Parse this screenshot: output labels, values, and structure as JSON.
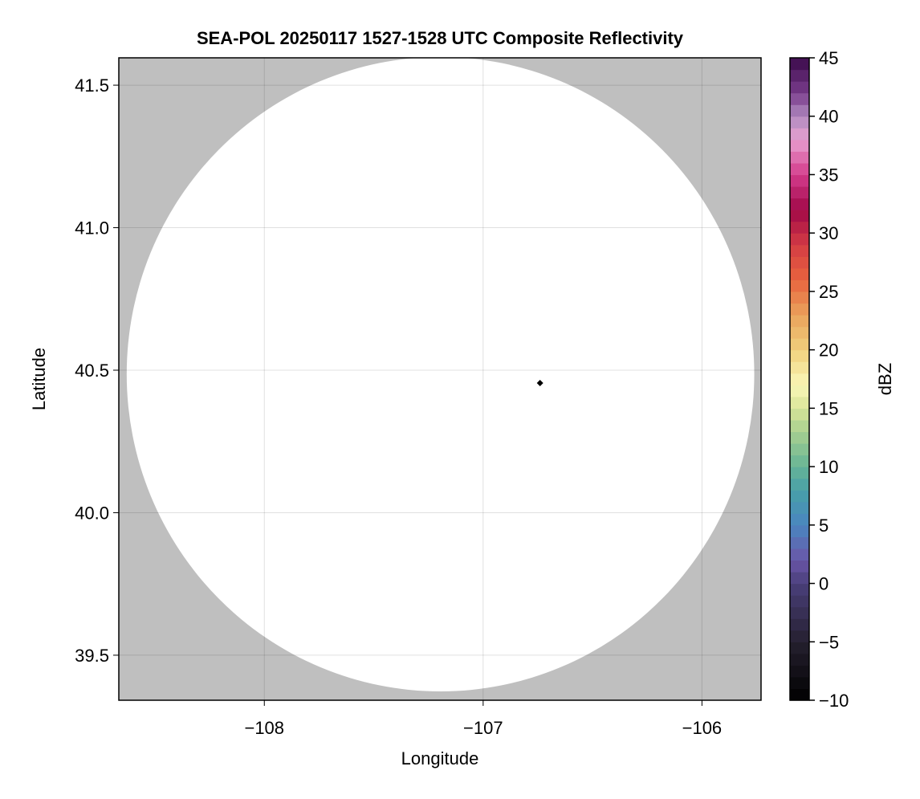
{
  "chart_data": {
    "type": "heatmap",
    "title": "SEA-POL 20250117 1527-1528 UTC Composite Reflectivity",
    "xlabel": "Longitude",
    "ylabel": "Latitude",
    "xlim": [
      -108.665,
      -105.73
    ],
    "ylim": [
      39.342,
      41.596
    ],
    "xticks": [
      -108,
      -107,
      -106
    ],
    "xtick_labels": [
      "−108",
      "−107",
      "−106"
    ],
    "yticks": [
      39.5,
      40.0,
      40.5,
      41.0,
      41.5
    ],
    "ytick_labels": [
      "39.5",
      "40.0",
      "40.5",
      "41.0",
      "41.5"
    ],
    "grid": true,
    "background_color": "#bfbfbf",
    "coverage_color": "#ffffff",
    "coverage": {
      "center_lon": -107.195,
      "center_lat": 40.486,
      "radius_lon": 1.434,
      "radius_lat": 1.113
    },
    "reflectivity_values": [],
    "radar_location": {
      "lon": -106.74,
      "lat": 40.455,
      "marker": "diamond",
      "color": "#000000"
    },
    "colorbar": {
      "label": "dBZ",
      "range": [
        -10,
        45
      ],
      "ticks": [
        -10,
        -5,
        0,
        5,
        10,
        15,
        20,
        25,
        30,
        35,
        40,
        45
      ],
      "tick_labels": [
        "−10",
        "−5",
        "0",
        "5",
        "10",
        "15",
        "20",
        "25",
        "30",
        "35",
        "40",
        "45"
      ],
      "bins": 55,
      "stops": [
        [
          -10,
          "#000000"
        ],
        [
          -5,
          "#25202f"
        ],
        [
          0,
          "#4a3f7a"
        ],
        [
          2,
          "#6a56a8"
        ],
        [
          5,
          "#4a86c0"
        ],
        [
          8,
          "#48a0a8"
        ],
        [
          10,
          "#66b496"
        ],
        [
          13,
          "#a8d090"
        ],
        [
          15,
          "#d8e498"
        ],
        [
          17,
          "#faf8b8"
        ],
        [
          20,
          "#f0d07c"
        ],
        [
          23,
          "#eaa25c"
        ],
        [
          26,
          "#e8643e"
        ],
        [
          29,
          "#d43c44"
        ],
        [
          32,
          "#a00848"
        ],
        [
          35,
          "#d43c8c"
        ],
        [
          38,
          "#e8a0d0"
        ],
        [
          40,
          "#b08ac0"
        ],
        [
          42,
          "#7a3c8c"
        ],
        [
          45,
          "#3a0a4a"
        ]
      ]
    }
  }
}
